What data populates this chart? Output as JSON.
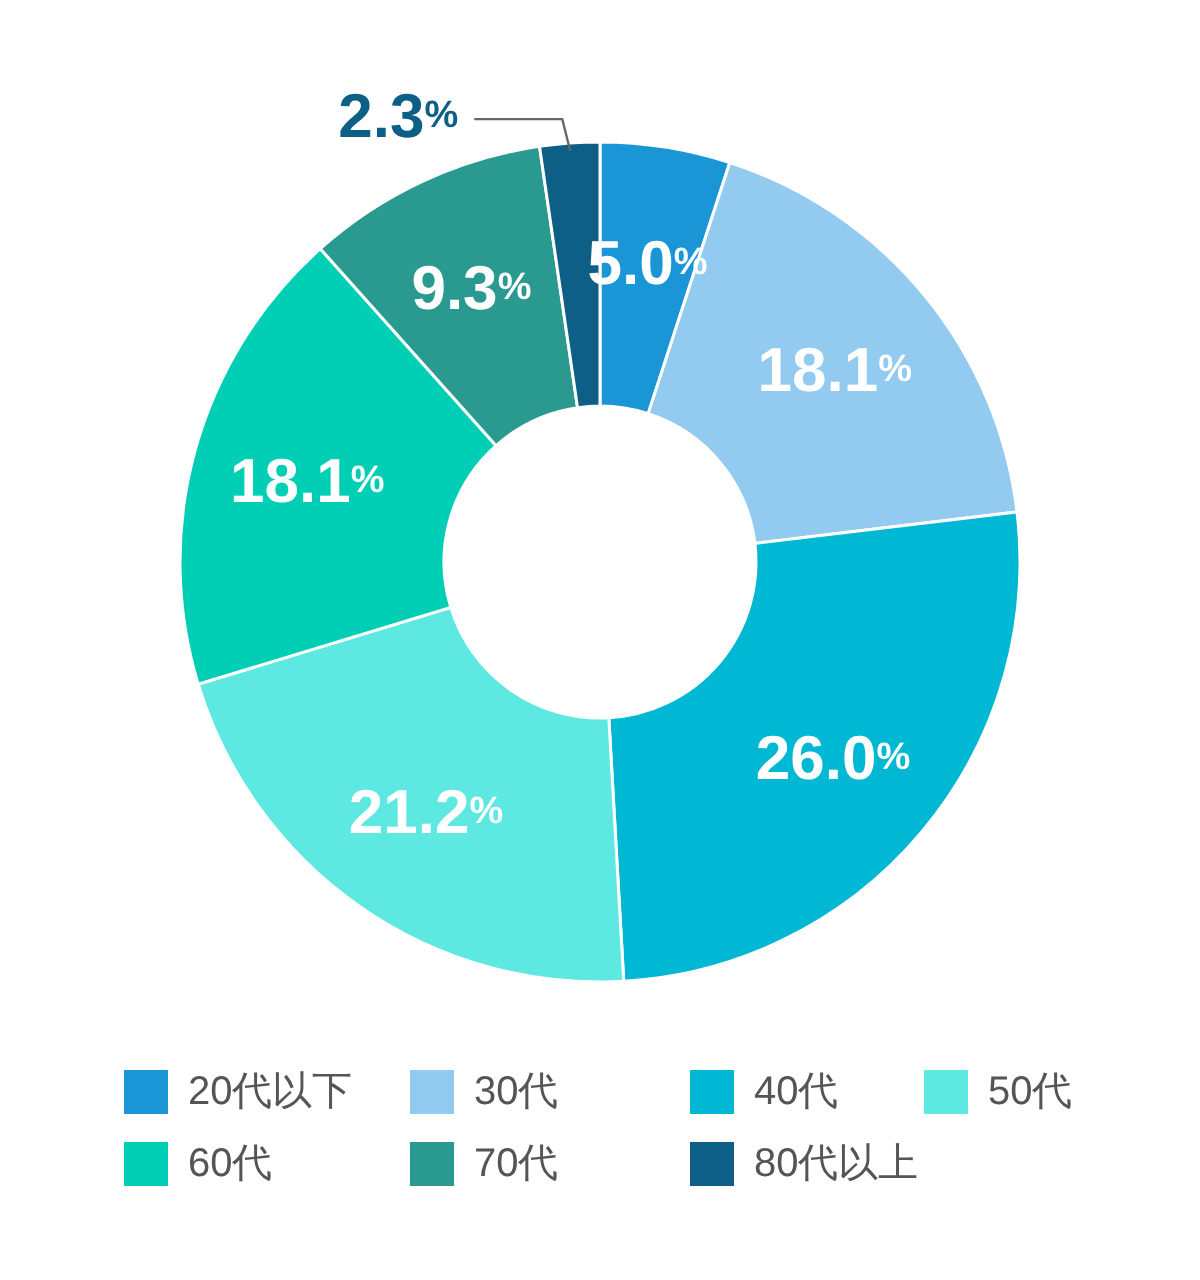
{
  "chart_data": {
    "type": "donut",
    "categories": [
      "20代以下",
      "30代",
      "40代",
      "50代",
      "60代",
      "70代",
      "80代以上"
    ],
    "values": [
      5.0,
      18.1,
      26.0,
      21.2,
      18.1,
      9.3,
      2.3
    ],
    "colors": [
      "#1a96d6",
      "#93cbf0",
      "#00b8d4",
      "#5de8e2",
      "#00cfb6",
      "#2a9a90",
      "#0d5f86"
    ],
    "value_labels": [
      "5.0%",
      "18.1%",
      "26.0%",
      "21.2%",
      "18.1%",
      "9.3%",
      "2.3%"
    ],
    "legend": "bottom"
  }
}
